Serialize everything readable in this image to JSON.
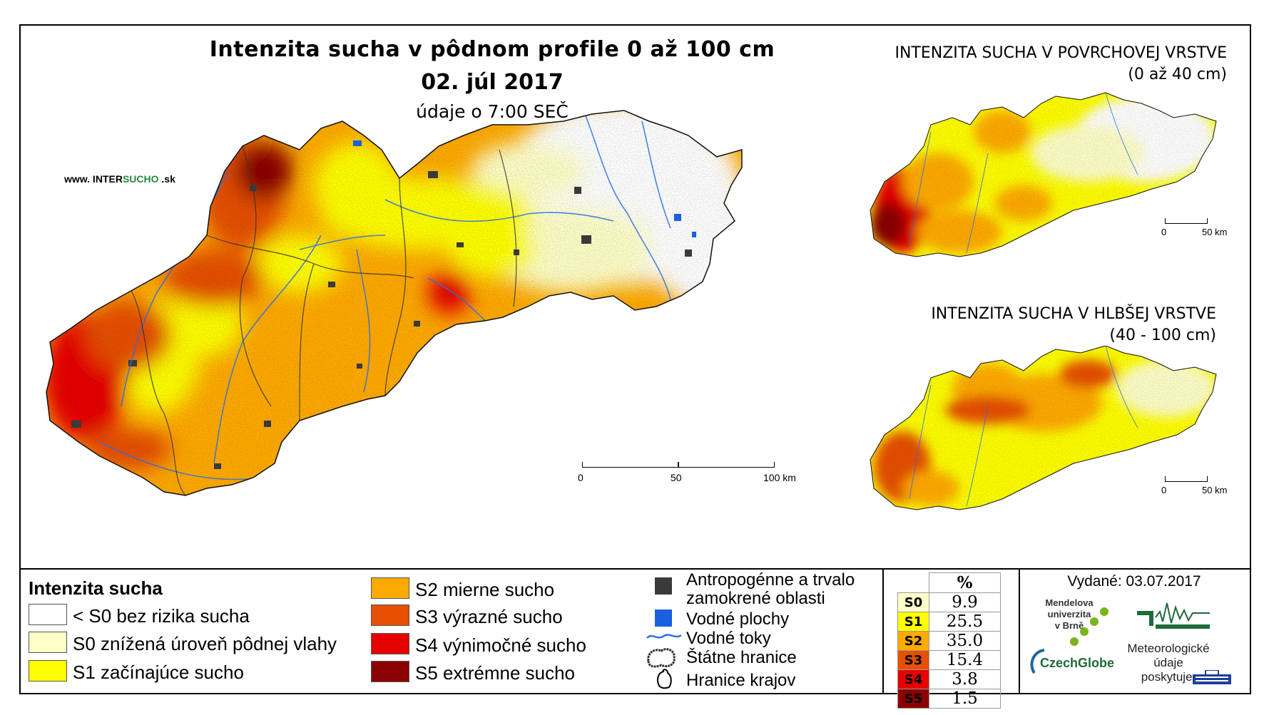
{
  "title": {
    "line1": "Intenzita sucha v pôdnom profile 0 až 100 cm",
    "line2": "02. júl 2017",
    "line3": "údaje o 7:00 SEČ"
  },
  "website": {
    "prefix": "www. INTER",
    "highlight": "SUCHO",
    "suffix": " .sk"
  },
  "insets": {
    "surface": {
      "title": "INTENZITA SUCHA V POVRCHOVEJ VRSTVE",
      "subtitle": "(0 až 40 cm)"
    },
    "deep": {
      "title": "INTENZITA SUCHA V HLBŠEJ VRSTVE",
      "subtitle": "(40 - 100 cm)"
    }
  },
  "scale_main": {
    "labels": [
      "0",
      "50",
      "100 km"
    ]
  },
  "scale_inset": {
    "labels": [
      "0",
      "50 km"
    ]
  },
  "legend": {
    "heading": "Intenzita sucha",
    "classes": [
      {
        "label": "< S0 bez rizika sucha",
        "color": "#ffffff"
      },
      {
        "label": "S0 znížená úroveň pôdnej vlahy",
        "color": "#ffffc8"
      },
      {
        "label": "S1 začínajúce sucho",
        "color": "#ffff00"
      },
      {
        "label": "S2 mierne sucho",
        "color": "#ffaa00"
      },
      {
        "label": "S3 výrazné sucho",
        "color": "#e65000"
      },
      {
        "label": "S4 výnimočné sucho",
        "color": "#e60000"
      },
      {
        "label": "S5 extrémne sucho",
        "color": "#8b0000"
      }
    ]
  },
  "symbols": [
    {
      "label": "Antropogénne a trvalo zamokrené oblasti",
      "line1": "Antropogénne a trvalo",
      "line2": "zamokrené oblasti",
      "icon": "dark-square-icon"
    },
    {
      "label": "Vodné plochy",
      "icon": "blue-square-icon"
    },
    {
      "label": "Vodné toky",
      "icon": "river-line-icon"
    },
    {
      "label": "Štátne hranice",
      "icon": "state-border-icon"
    },
    {
      "label": "Hranice krajov",
      "icon": "region-border-icon"
    }
  ],
  "stats": {
    "header": "%",
    "rows": [
      {
        "code": "S0",
        "value": "9.9",
        "color": "#ffffc8"
      },
      {
        "code": "S1",
        "value": "25.5",
        "color": "#ffff00"
      },
      {
        "code": "S2",
        "value": "35.0",
        "color": "#ffaa00"
      },
      {
        "code": "S3",
        "value": "15.4",
        "color": "#e65000"
      },
      {
        "code": "S4",
        "value": "3.8",
        "color": "#e60000"
      },
      {
        "code": "S5",
        "value": "1.5",
        "color": "#8b0000"
      }
    ]
  },
  "issued": "Vydané: 03.07.2017",
  "logos": {
    "university": [
      "Mendelova",
      "univerzita",
      "v Brně"
    ],
    "czechglobe": "CzechGlobe",
    "met_text": [
      "Meteorologické",
      "údaje",
      "poskytuje:"
    ]
  }
}
